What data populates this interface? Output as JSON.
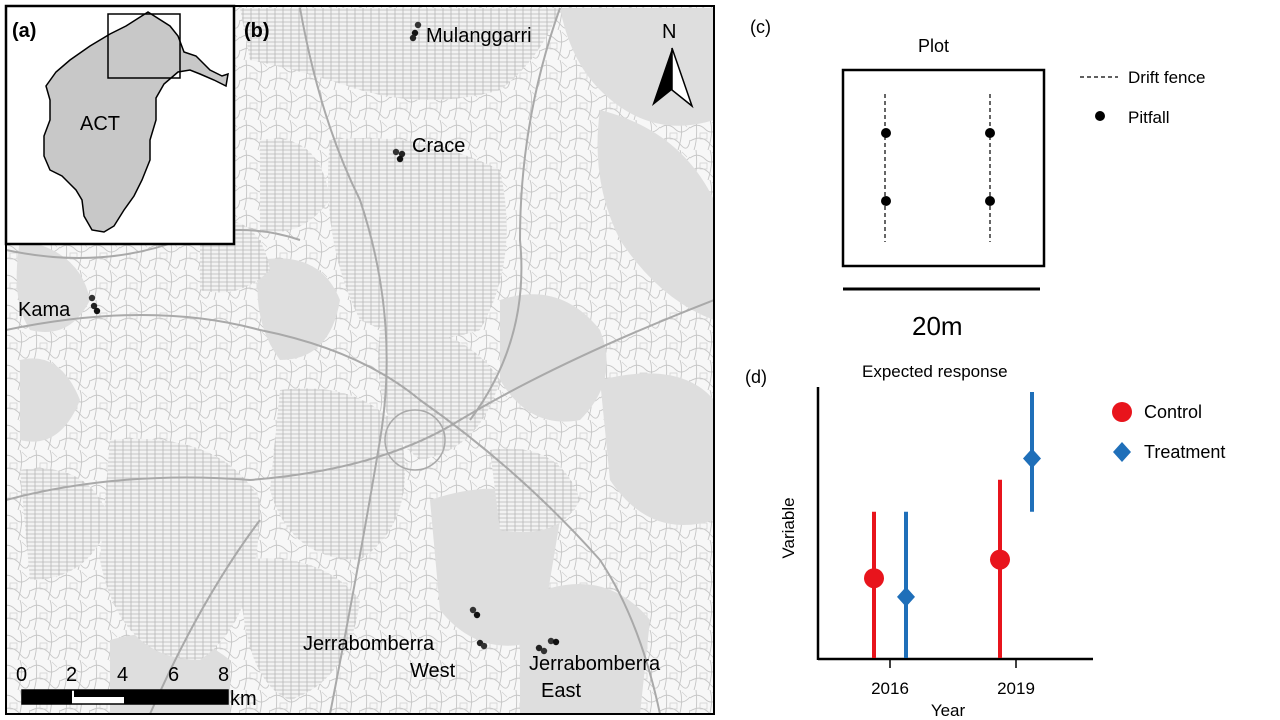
{
  "panels": {
    "a": {
      "label": "(a)",
      "region": "ACT"
    },
    "b": {
      "label": "(b)",
      "north": "N",
      "sites": [
        {
          "name": "Mulanggarri"
        },
        {
          "name": "Crace"
        },
        {
          "name": "Kama"
        },
        {
          "name": "Jerrabomberra",
          "name2": "West"
        },
        {
          "name": "Jerrabomberra",
          "name2": "East"
        }
      ],
      "scale": {
        "ticks": [
          "0",
          "2",
          "4",
          "6",
          "8"
        ],
        "unit": "km"
      }
    },
    "c": {
      "label": "(c)",
      "title": "Plot",
      "legend": {
        "fence": "Drift fence",
        "pitfall": "Pitfall"
      },
      "scale": "20m"
    },
    "d": {
      "label": "(d)"
    }
  },
  "chart_data": {
    "type": "scatter",
    "title": "Expected response",
    "xlabel": "Year",
    "ylabel": "Variable",
    "categories": [
      "2016",
      "2019"
    ],
    "ylim": [
      0,
      10
    ],
    "legend_position": "right",
    "series": [
      {
        "name": "Control",
        "color": "#e8141c",
        "marker": "circle",
        "values": [
          3.0,
          3.7
        ],
        "lower": [
          0,
          0
        ],
        "upper": [
          5.5,
          6.7
        ]
      },
      {
        "name": "Treatment",
        "color": "#1f6fb9",
        "marker": "diamond",
        "values": [
          2.3,
          7.5
        ],
        "lower": [
          0,
          5.5
        ],
        "upper": [
          5.5,
          10.0
        ]
      }
    ]
  },
  "colors": {
    "land": "#c8c8c8",
    "road": "#bdbdbd",
    "control": "#e8141c",
    "treatment": "#1f6fb9"
  }
}
